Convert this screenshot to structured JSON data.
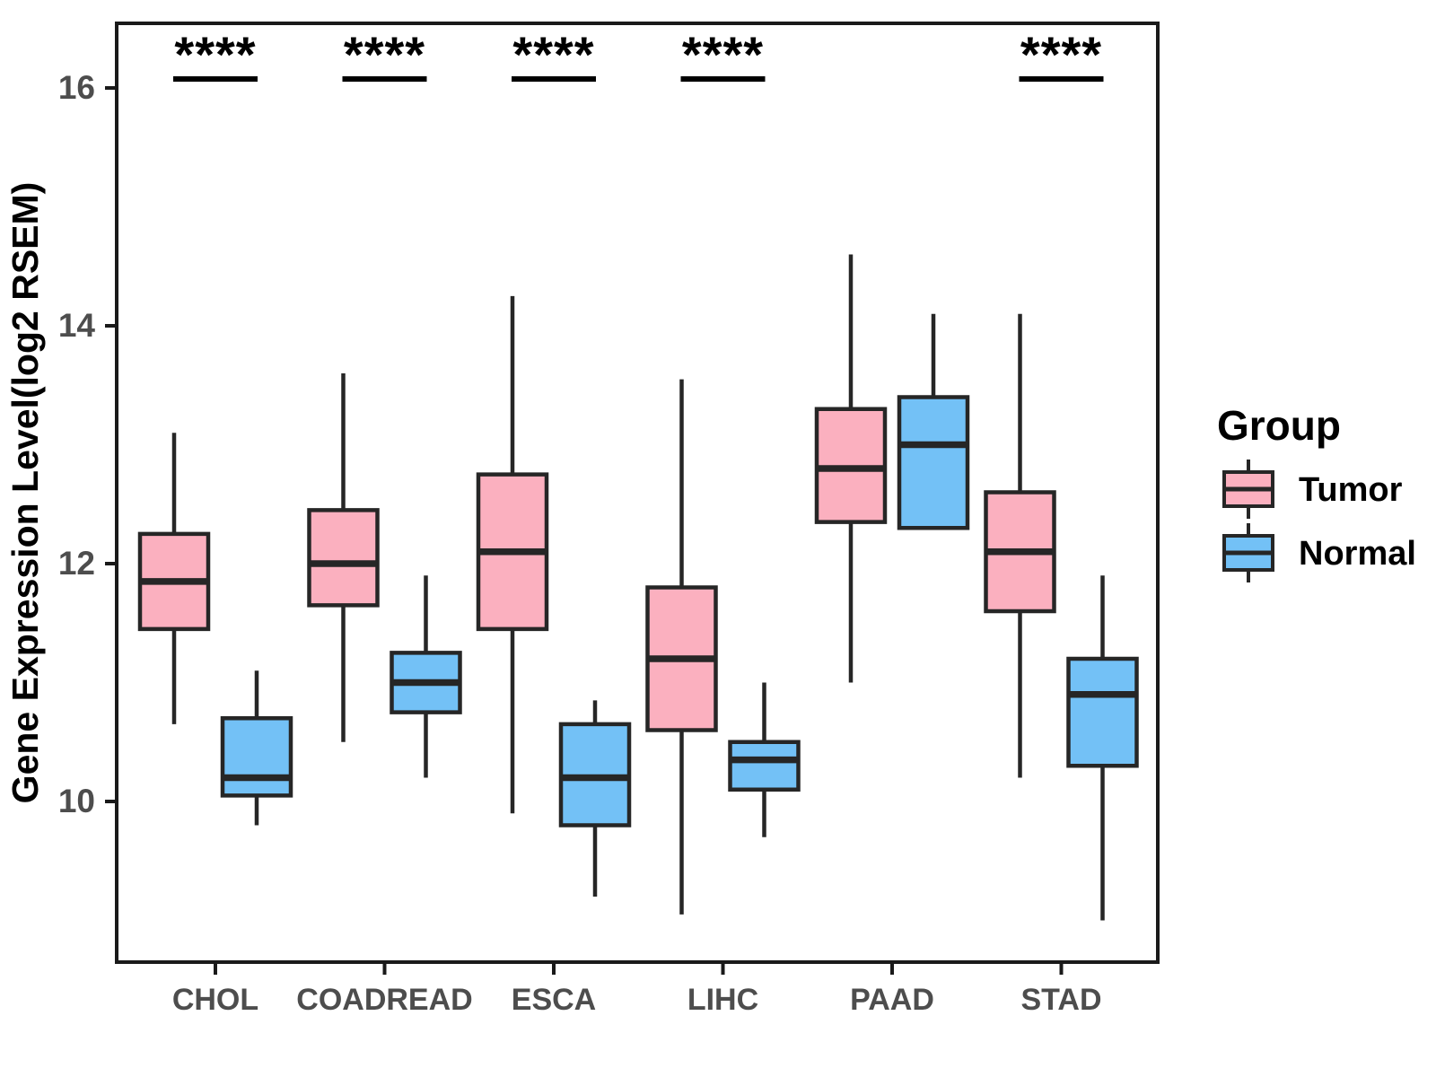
{
  "chart_data": {
    "type": "boxplot",
    "title": "",
    "xlabel": "",
    "ylabel": "Gene Expression Level(log2 RSEM)",
    "categories": [
      "CHOL",
      "COADREAD",
      "ESCA",
      "LIHC",
      "PAAD",
      "STAD"
    ],
    "yticks": [
      10,
      12,
      14,
      16
    ],
    "ylim": [
      8.65,
      16.54
    ],
    "grid": false,
    "legend_position": "right-middle",
    "series": [
      {
        "name": "Tumor",
        "color": "#FBB0BF",
        "boxes": [
          {
            "category": "CHOL",
            "min": 10.65,
            "q1": 11.45,
            "median": 11.85,
            "q3": 12.25,
            "max": 13.1
          },
          {
            "category": "COADREAD",
            "min": 10.5,
            "q1": 11.65,
            "median": 12.0,
            "q3": 12.45,
            "max": 13.6
          },
          {
            "category": "ESCA",
            "min": 9.9,
            "q1": 11.45,
            "median": 12.1,
            "q3": 12.75,
            "max": 14.25
          },
          {
            "category": "LIHC",
            "min": 9.05,
            "q1": 10.6,
            "median": 11.2,
            "q3": 11.8,
            "max": 13.55
          },
          {
            "category": "PAAD",
            "min": 11.0,
            "q1": 12.35,
            "median": 12.8,
            "q3": 13.3,
            "max": 14.6
          },
          {
            "category": "STAD",
            "min": 10.2,
            "q1": 11.6,
            "median": 12.1,
            "q3": 12.6,
            "max": 14.1
          }
        ]
      },
      {
        "name": "Normal",
        "color": "#73C1F6",
        "boxes": [
          {
            "category": "CHOL",
            "min": 9.8,
            "q1": 10.05,
            "median": 10.2,
            "q3": 10.7,
            "max": 11.1
          },
          {
            "category": "COADREAD",
            "min": 10.2,
            "q1": 10.75,
            "median": 11.0,
            "q3": 11.25,
            "max": 11.9
          },
          {
            "category": "ESCA",
            "min": 9.2,
            "q1": 9.8,
            "median": 10.2,
            "q3": 10.65,
            "max": 10.85
          },
          {
            "category": "LIHC",
            "min": 9.7,
            "q1": 10.1,
            "median": 10.35,
            "q3": 10.5,
            "max": 11.0
          },
          {
            "category": "PAAD",
            "min": 12.3,
            "q1": 12.3,
            "median": 13.0,
            "q3": 13.4,
            "max": 14.1
          },
          {
            "category": "STAD",
            "min": 9.0,
            "q1": 10.3,
            "median": 10.9,
            "q3": 11.2,
            "max": 11.9
          }
        ]
      }
    ],
    "significance": [
      {
        "category": "CHOL",
        "label": "****"
      },
      {
        "category": "COADREAD",
        "label": "****"
      },
      {
        "category": "ESCA",
        "label": "****"
      },
      {
        "category": "LIHC",
        "label": "****"
      },
      {
        "category": "STAD",
        "label": "****"
      }
    ],
    "legend": {
      "title": "Group",
      "entries": [
        {
          "label": "Tumor",
          "color": "#FBB0BF"
        },
        {
          "label": "Normal",
          "color": "#73C1F6"
        }
      ]
    },
    "colors": {
      "box_border": "#262626",
      "median_line": "#262626",
      "whisker": "#262626",
      "panel_border": "#1A1A1A",
      "tick_label": "#4D4D4D",
      "axis_title": "#000000",
      "significance": "#000000",
      "background": "#FFFFFF"
    }
  }
}
